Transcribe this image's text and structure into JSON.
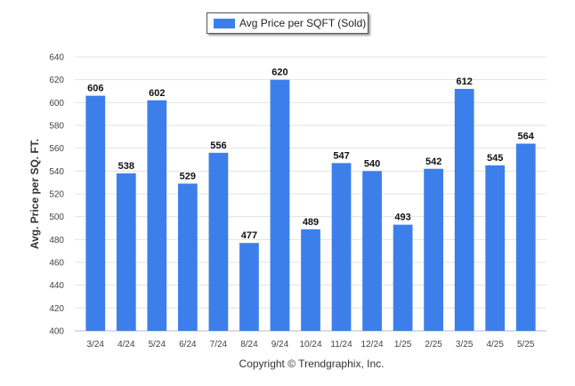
{
  "legend": {
    "label": "Avg Price per SQFT (Sold)",
    "color": "#3d7fea"
  },
  "footer": "Copyright © Trendgraphix, Inc.",
  "chart_data": {
    "type": "bar",
    "title": "",
    "xlabel": "",
    "ylabel": "Avg. Price per SQ. FT.",
    "ylim": [
      400,
      640
    ],
    "ytick_step": 20,
    "grid": true,
    "legend_position": "top-center",
    "bar_color": "#3d7fea",
    "categories": [
      "3/24",
      "4/24",
      "5/24",
      "6/24",
      "7/24",
      "8/24",
      "9/24",
      "10/24",
      "11/24",
      "12/24",
      "1/25",
      "2/25",
      "3/25",
      "4/25",
      "5/25"
    ],
    "series": [
      {
        "name": "Avg Price per SQFT (Sold)",
        "values": [
          606,
          538,
          602,
          529,
          556,
          477,
          620,
          489,
          547,
          540,
          493,
          542,
          612,
          545,
          564
        ]
      }
    ]
  }
}
